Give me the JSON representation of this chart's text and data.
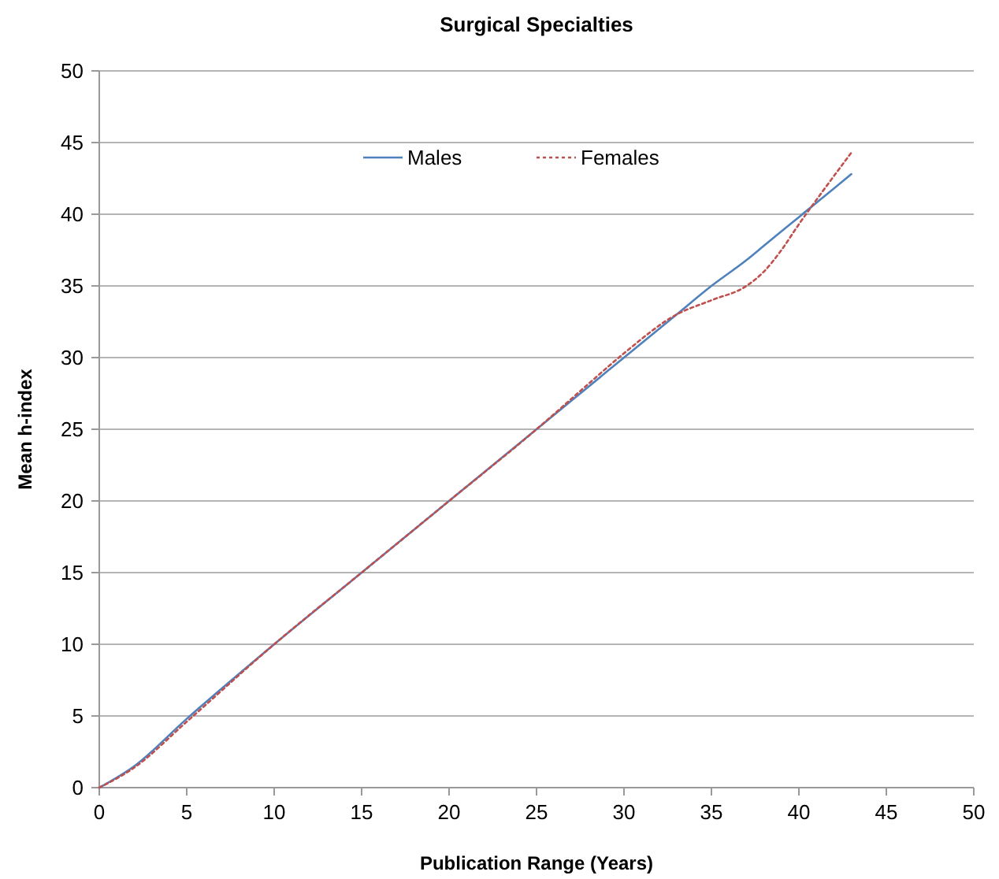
{
  "chart_data": {
    "type": "line",
    "title": "Surgical Specialties",
    "xlabel": "Publication Range (Years)",
    "ylabel": "Mean h-index",
    "x": [
      0,
      2,
      5,
      10,
      15,
      20,
      25,
      28,
      30,
      33,
      35,
      37,
      38,
      39,
      40,
      41,
      43
    ],
    "series": [
      {
        "name": "Males",
        "color": "#4f81bd",
        "line_style": "solid",
        "values": [
          0,
          1.5,
          4.8,
          10,
          15,
          20,
          25,
          28,
          30,
          33,
          35,
          36.8,
          37.8,
          38.8,
          39.8,
          40.8,
          42.8
        ]
      },
      {
        "name": "Females",
        "color": "#c0504d",
        "line_style": "dotted",
        "values": [
          0,
          1.4,
          4.6,
          10,
          15,
          20,
          25,
          28.2,
          30.3,
          33,
          34,
          35,
          36,
          37.5,
          39.3,
          41,
          44.3
        ]
      }
    ],
    "xlim": [
      0,
      50
    ],
    "ylim": [
      0,
      50
    ],
    "xticks": [
      0,
      5,
      10,
      15,
      20,
      25,
      30,
      35,
      40,
      45,
      50
    ],
    "yticks": [
      0,
      5,
      10,
      15,
      20,
      25,
      30,
      35,
      40,
      45,
      50
    ],
    "grid": "y",
    "legend": "top"
  }
}
